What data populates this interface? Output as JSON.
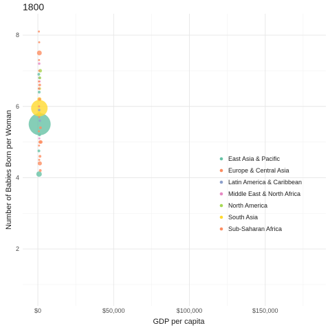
{
  "chart_data": {
    "type": "scatter",
    "title": "1800",
    "xlabel": "GDP per capita",
    "ylabel": "Number of Babies Born per Woman",
    "xlim": [
      -10000,
      190000
    ],
    "ylim": [
      0.4,
      8.6
    ],
    "x_ticks": [
      0,
      50000,
      100000,
      150000
    ],
    "x_tick_labels": [
      "$0",
      "$50,000",
      "$100,000",
      "$150,000"
    ],
    "y_ticks": [
      2,
      4,
      6,
      8
    ],
    "y_tick_labels": [
      "2",
      "4",
      "6",
      "8"
    ],
    "grid": true,
    "legend_position": "right",
    "series": [
      {
        "name": "East Asia & Pacific",
        "color": "#66C2A5",
        "points": [
          {
            "x": 1200,
            "y": 5.5,
            "size": 16
          },
          {
            "x": 800,
            "y": 4.1,
            "size": 4
          },
          {
            "x": 700,
            "y": 4.75,
            "size": 2
          },
          {
            "x": 900,
            "y": 6.4,
            "size": 2
          },
          {
            "x": 1100,
            "y": 5.2,
            "size": 2
          },
          {
            "x": 650,
            "y": 6.9,
            "size": 2
          }
        ]
      },
      {
        "name": "Europe & Central Asia",
        "color": "#FC8D62",
        "points": [
          {
            "x": 1000,
            "y": 7.5,
            "size": 3.5
          },
          {
            "x": 1300,
            "y": 4.4,
            "size": 3
          },
          {
            "x": 1500,
            "y": 5.0,
            "size": 2.5
          },
          {
            "x": 1700,
            "y": 5.4,
            "size": 2
          },
          {
            "x": 1100,
            "y": 6.2,
            "size": 2
          },
          {
            "x": 1400,
            "y": 4.6,
            "size": 2
          },
          {
            "x": 2000,
            "y": 5.0,
            "size": 2.5
          },
          {
            "x": 900,
            "y": 7.8,
            "size": 1.5
          },
          {
            "x": 1600,
            "y": 4.2,
            "size": 2
          },
          {
            "x": 1200,
            "y": 6.6,
            "size": 2
          }
        ]
      },
      {
        "name": "Latin America & Caribbean",
        "color": "#8DA0CB",
        "points": [
          {
            "x": 1100,
            "y": 6.8,
            "size": 2
          },
          {
            "x": 900,
            "y": 5.9,
            "size": 1.8
          },
          {
            "x": 1300,
            "y": 5.6,
            "size": 1.8
          },
          {
            "x": 1000,
            "y": 6.5,
            "size": 1.5
          }
        ]
      },
      {
        "name": "Middle East & North Africa",
        "color": "#E78AC3",
        "points": [
          {
            "x": 900,
            "y": 7.2,
            "size": 1.8
          },
          {
            "x": 1200,
            "y": 6.7,
            "size": 1.5
          },
          {
            "x": 1000,
            "y": 5.1,
            "size": 1.5
          }
        ]
      },
      {
        "name": "North America",
        "color": "#A6D854",
        "points": [
          {
            "x": 1600,
            "y": 7.0,
            "size": 2.5
          },
          {
            "x": 1300,
            "y": 6.8,
            "size": 2
          }
        ]
      },
      {
        "name": "South Asia",
        "color": "#FFD92F",
        "points": [
          {
            "x": 1000,
            "y": 5.95,
            "size": 12
          },
          {
            "x": 1000,
            "y": 6.2,
            "size": 3
          },
          {
            "x": 900,
            "y": 5.8,
            "size": 2.5
          },
          {
            "x": 1200,
            "y": 6.5,
            "size": 2
          }
        ]
      },
      {
        "name": "Sub-Saharan Africa",
        "color": "#FC8D62",
        "points": [
          {
            "x": 700,
            "y": 8.1,
            "size": 1.5
          },
          {
            "x": 800,
            "y": 7.3,
            "size": 1.5
          },
          {
            "x": 900,
            "y": 7.0,
            "size": 1.5
          },
          {
            "x": 700,
            "y": 6.7,
            "size": 1.5
          },
          {
            "x": 800,
            "y": 6.0,
            "size": 1.5
          },
          {
            "x": 900,
            "y": 5.7,
            "size": 1.5
          },
          {
            "x": 700,
            "y": 5.3,
            "size": 1.5
          },
          {
            "x": 800,
            "y": 4.9,
            "size": 1.5
          },
          {
            "x": 600,
            "y": 6.5,
            "size": 1.5
          },
          {
            "x": 900,
            "y": 4.5,
            "size": 1.5
          }
        ]
      }
    ]
  }
}
